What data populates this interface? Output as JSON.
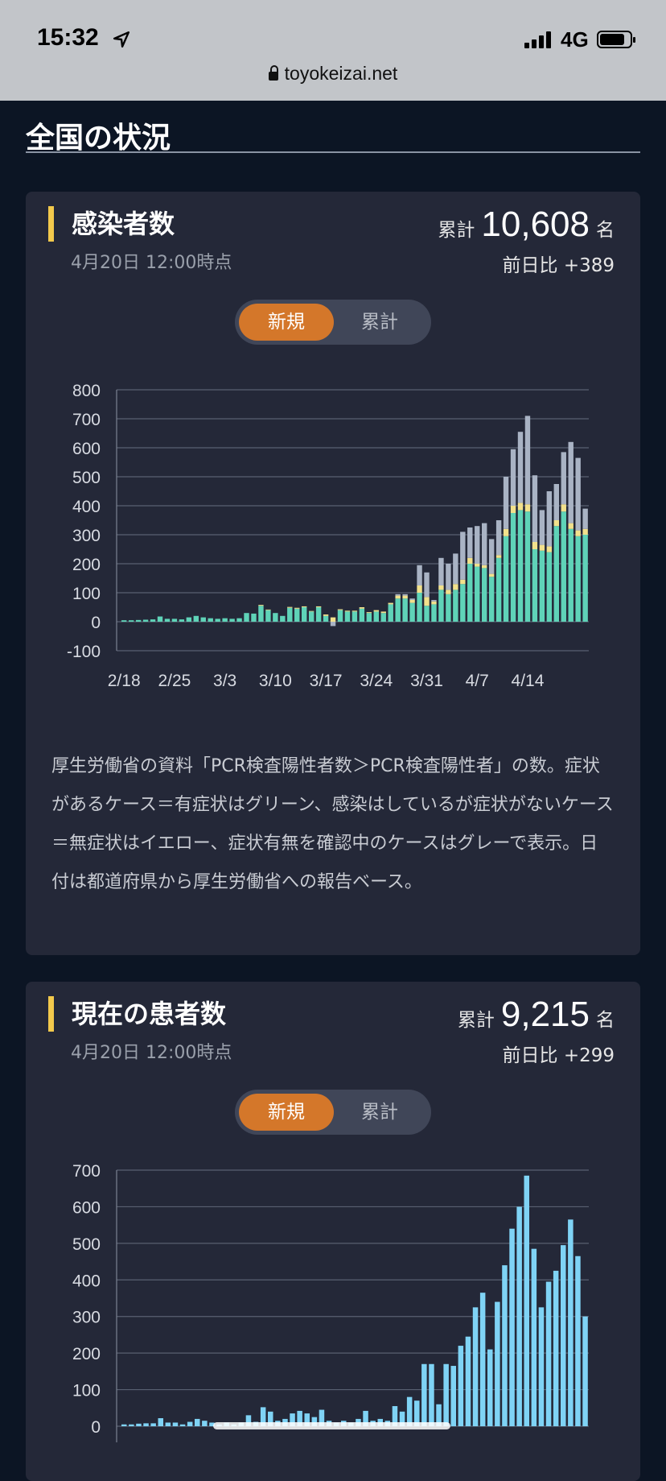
{
  "status": {
    "time": "15:32",
    "network": "4G"
  },
  "browser": {
    "url": "toyokeizai.net"
  },
  "page": {
    "title": "全国の状況"
  },
  "infected": {
    "title": "感染者数",
    "date": "4月20日 12:00時点",
    "total_label": "累計",
    "total_value": "10,608",
    "total_unit": "名",
    "delta": "前日比 +389",
    "toggle": {
      "active": "新規",
      "inactive": "累計"
    },
    "description": "厚生労働省の資料「PCR検査陽性者数＞PCR検査陽性者」の数。症状があるケース＝有症状はグリーン、感染はしているが症状がないケース＝無症状はイエロー、症状有無を確認中のケースはグレーで表示。日付は都道府県から厚生労働省への報告ベース。"
  },
  "patients": {
    "title": "現在の患者数",
    "date": "4月20日 12:00時点",
    "total_label": "累計",
    "total_value": "9,215",
    "total_unit": "名",
    "delta": "前日比 +299",
    "toggle": {
      "active": "新規",
      "inactive": "累計"
    }
  },
  "chart_data": [
    {
      "type": "bar",
      "stacked": true,
      "x_tick_labels": [
        "2/18",
        "2/25",
        "3/3",
        "3/10",
        "3/17",
        "3/24",
        "3/31",
        "4/7",
        "4/14"
      ],
      "y_ticks": [
        800,
        700,
        600,
        500,
        400,
        300,
        200,
        100,
        0,
        -100
      ],
      "ylim": [
        -100,
        800
      ],
      "colors": {
        "symptomatic": "#5fd3b8",
        "asymptomatic": "#f2e18c",
        "unconfirmed": "#a9b3c4"
      },
      "symptomatic": [
        5,
        5,
        6,
        7,
        8,
        18,
        10,
        10,
        8,
        15,
        20,
        15,
        12,
        10,
        12,
        10,
        12,
        30,
        28,
        55,
        40,
        30,
        20,
        48,
        45,
        50,
        35,
        50,
        20,
        -15,
        40,
        35,
        35,
        45,
        30,
        35,
        30,
        60,
        80,
        80,
        65,
        100,
        55,
        60,
        110,
        95,
        110,
        130,
        200,
        190,
        185,
        155,
        220,
        295,
        375,
        385,
        380,
        250,
        245,
        240,
        330,
        380,
        320,
        295,
        300
      ],
      "asymptomatic": [
        0,
        0,
        0,
        0,
        0,
        0,
        0,
        0,
        0,
        0,
        0,
        0,
        0,
        0,
        0,
        0,
        0,
        0,
        0,
        3,
        2,
        0,
        0,
        3,
        3,
        3,
        2,
        3,
        5,
        15,
        3,
        3,
        3,
        5,
        3,
        5,
        5,
        5,
        10,
        10,
        10,
        25,
        30,
        10,
        15,
        15,
        20,
        15,
        20,
        10,
        10,
        10,
        10,
        25,
        25,
        25,
        25,
        25,
        20,
        20,
        20,
        25,
        20,
        20,
        20
      ],
      "unconfirmed": [
        0,
        0,
        0,
        0,
        0,
        0,
        0,
        0,
        0,
        0,
        0,
        0,
        0,
        0,
        0,
        0,
        0,
        0,
        0,
        0,
        0,
        0,
        0,
        0,
        0,
        0,
        0,
        0,
        0,
        0,
        0,
        0,
        0,
        0,
        0,
        0,
        0,
        0,
        5,
        5,
        5,
        70,
        85,
        5,
        95,
        90,
        105,
        165,
        105,
        130,
        145,
        120,
        120,
        180,
        195,
        245,
        305,
        230,
        120,
        190,
        125,
        180,
        280,
        250,
        70
      ]
    },
    {
      "type": "bar",
      "x_tick_labels": [
        "2/18",
        "2/25",
        "3/3",
        "3/10",
        "3/17",
        "3/24",
        "3/31",
        "4/7",
        "4/14"
      ],
      "y_ticks": [
        700,
        600,
        500,
        400,
        300,
        200,
        100,
        0
      ],
      "ylim": [
        0,
        700
      ],
      "color": "#7fd3f5",
      "values": [
        5,
        5,
        7,
        8,
        8,
        22,
        10,
        10,
        5,
        12,
        20,
        15,
        10,
        5,
        10,
        5,
        10,
        30,
        12,
        52,
        40,
        15,
        20,
        35,
        42,
        35,
        25,
        45,
        15,
        10,
        15,
        10,
        20,
        42,
        15,
        20,
        15,
        55,
        40,
        80,
        70,
        170,
        170,
        60,
        170,
        165,
        220,
        245,
        325,
        365,
        210,
        340,
        440,
        540,
        600,
        685,
        485,
        325,
        395,
        425,
        495,
        565,
        465,
        300
      ]
    }
  ]
}
